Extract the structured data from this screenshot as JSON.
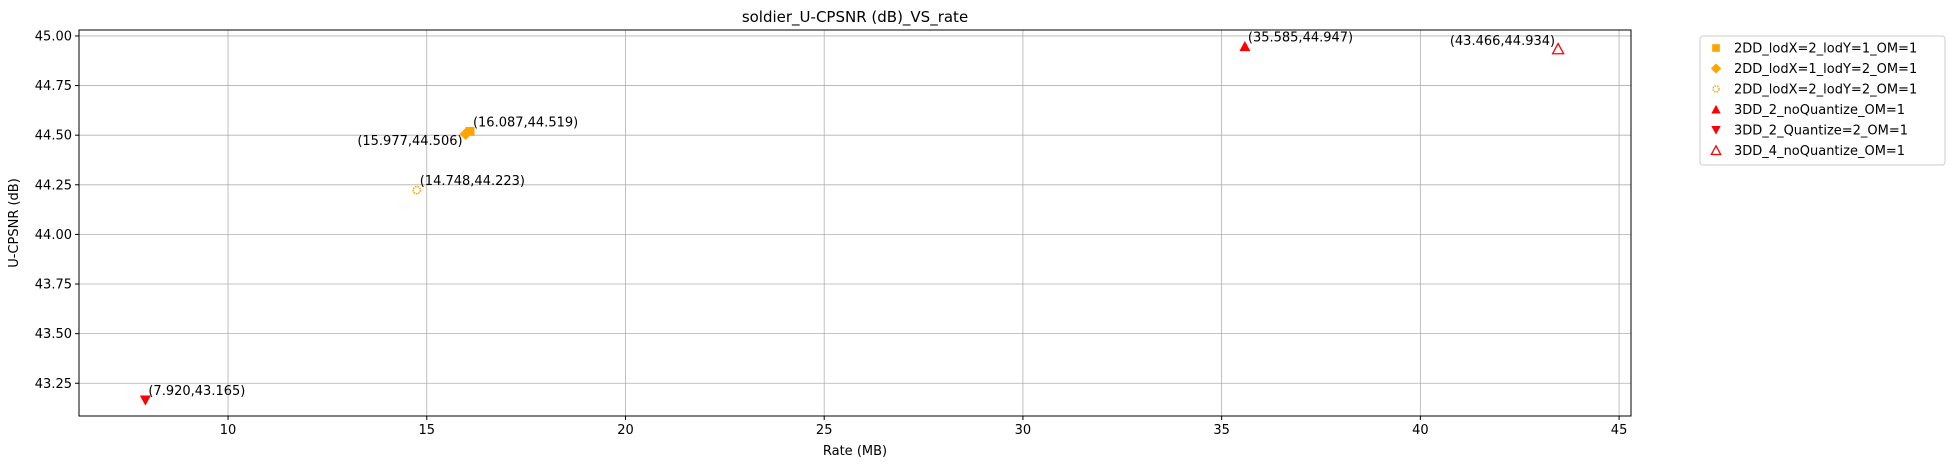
{
  "chart_data": {
    "type": "scatter",
    "title": "soldier_U-CPSNR (dB)_VS_rate",
    "xlabel": "Rate (MB)",
    "ylabel": "U-CPSNR (dB)",
    "xlim": [
      6.25,
      45.3
    ],
    "ylim": [
      43.085,
      45.03
    ],
    "xticks": [
      10,
      15,
      20,
      25,
      30,
      35,
      40,
      45
    ],
    "xtick_labels": [
      "10",
      "15",
      "20",
      "25",
      "30",
      "35",
      "40",
      "45"
    ],
    "yticks": [
      43.25,
      43.5,
      43.75,
      44.0,
      44.25,
      44.5,
      44.75,
      45.0
    ],
    "ytick_labels": [
      "43.25",
      "43.50",
      "43.75",
      "44.00",
      "44.25",
      "44.50",
      "44.75",
      "45.00"
    ],
    "grid": true,
    "legend_position": "outside-right",
    "series": [
      {
        "name": "2DD_lodX=2_lodY=1_OM=1",
        "color": "#FFA500",
        "marker": "square",
        "points": [
          {
            "x": 16.087,
            "y": 44.519,
            "label": "(16.087,44.519)"
          }
        ]
      },
      {
        "name": "2DD_lodX=1_lodY=2_OM=1",
        "color": "#FFA500",
        "marker": "diamond",
        "points": [
          {
            "x": 15.977,
            "y": 44.506,
            "label": "(15.977,44.506)"
          }
        ]
      },
      {
        "name": "2DD_lodX=2_lodY=2_OM=1",
        "color": "#FFA500",
        "marker": "gear",
        "points": [
          {
            "x": 14.748,
            "y": 44.223,
            "label": "(14.748,44.223)"
          }
        ]
      },
      {
        "name": "3DD_2_noQuantize_OM=1",
        "color": "#FF0000",
        "marker": "triangle-up",
        "points": [
          {
            "x": 35.585,
            "y": 44.947,
            "label": "(35.585,44.947)"
          }
        ]
      },
      {
        "name": "3DD_2_Quantize=2_OM=1",
        "color": "#FF0000",
        "marker": "triangle-down",
        "points": [
          {
            "x": 7.92,
            "y": 43.165,
            "label": "(7.920,43.165)"
          }
        ]
      },
      {
        "name": "3DD_4_noQuantize_OM=1",
        "color": "#FF0000",
        "marker": "triangle-up-open",
        "points": [
          {
            "x": 43.466,
            "y": 44.934,
            "label": "(43.466,44.934)"
          }
        ]
      }
    ]
  }
}
